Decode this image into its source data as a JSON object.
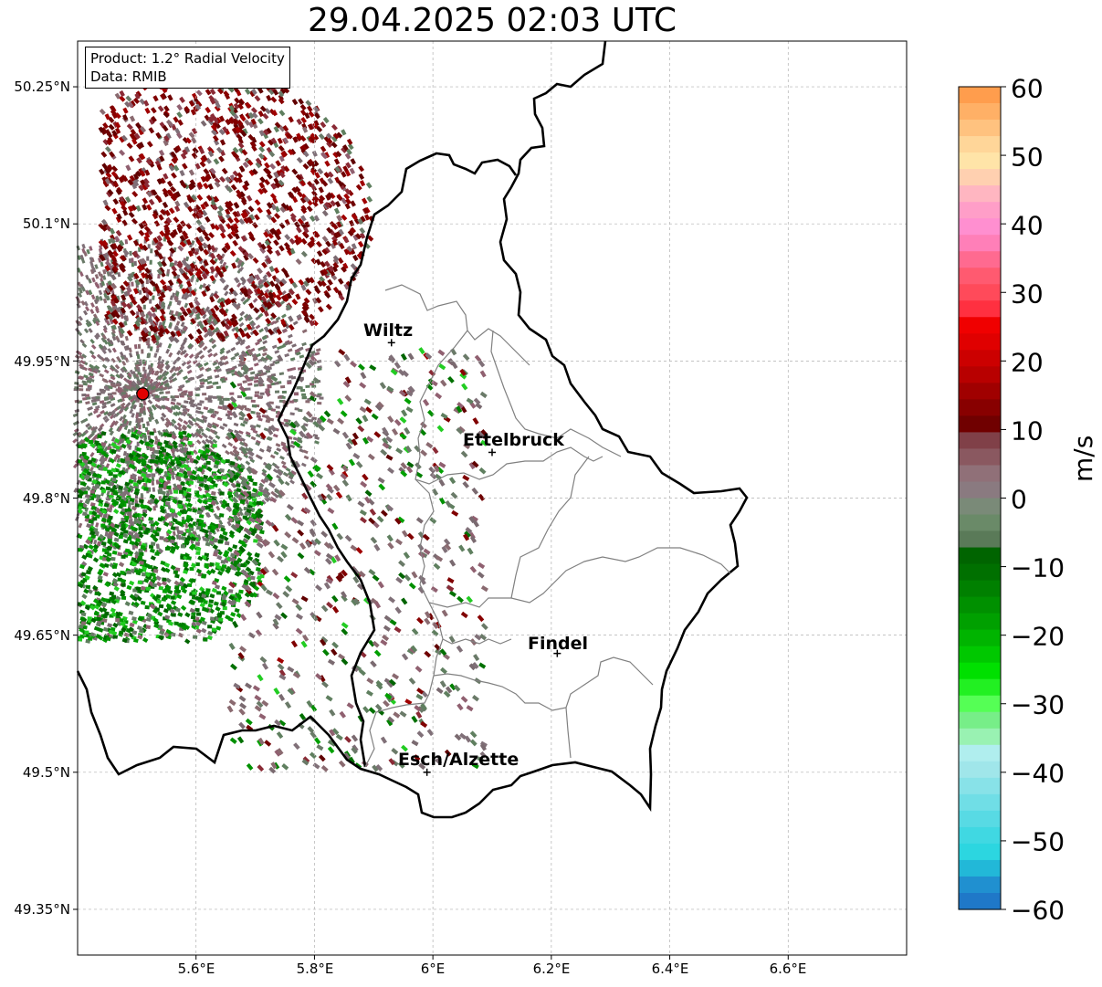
{
  "title": "29.04.2025 02:03 UTC",
  "info": {
    "product": "Product: 1.2° Radial Velocity",
    "data": "Data: RMIB"
  },
  "axes": {
    "lon_range": [
      5.4,
      6.8
    ],
    "lat_range": [
      49.3,
      50.3
    ],
    "x_ticks": [
      "5.6°E",
      "5.8°E",
      "6°E",
      "6.2°E",
      "6.4°E",
      "6.6°E"
    ],
    "y_ticks": [
      "50.25°N",
      "50.1°N",
      "49.95°N",
      "49.8°N",
      "49.65°N",
      "49.5°N",
      "49.35°N"
    ],
    "grid": true
  },
  "radar_site": {
    "lon": 5.51,
    "lat": 49.914,
    "color": "#e00000"
  },
  "cities": [
    {
      "name": "Wiltz",
      "lon": 5.93,
      "lat": 49.97
    },
    {
      "name": "Ettelbruck",
      "lon": 6.1,
      "lat": 49.85
    },
    {
      "name": "Findel",
      "lon": 6.21,
      "lat": 49.63
    },
    {
      "name": "Esch/Alzette",
      "lon": 5.99,
      "lat": 49.5
    }
  ],
  "colorbar": {
    "unit": "m/s",
    "min": -60,
    "max": 60,
    "ticks": [
      "60",
      "50",
      "40",
      "30",
      "20",
      "10",
      "0",
      "−10",
      "−20",
      "−30",
      "−40",
      "−50",
      "−60"
    ],
    "colors_top_to_bottom": [
      "#ff9d4d",
      "#ffb066",
      "#ffc27f",
      "#ffd699",
      "#ffe4a8",
      "#ffd0b0",
      "#ffb6c1",
      "#ff9ec8",
      "#ff8fd0",
      "#ff7fb8",
      "#ff6a90",
      "#ff5a70",
      "#ff4a5a",
      "#ff3040",
      "#f00000",
      "#e00000",
      "#cc0000",
      "#b80000",
      "#a00000",
      "#880000",
      "#700000",
      "#804048",
      "#8a5860",
      "#907078",
      "#8a7a80",
      "#7a8a78",
      "#6a8a68",
      "#5a7a58",
      "#006400",
      "#007000",
      "#008000",
      "#009000",
      "#00a000",
      "#00b400",
      "#00c800",
      "#00e000",
      "#22f022",
      "#55ff55",
      "#77ee88",
      "#99f2b2",
      "#b0eeee",
      "#a0e6ea",
      "#88e2e8",
      "#70dee6",
      "#58dae4",
      "#40d8e2",
      "#2cd6e0",
      "#22b8d8",
      "#2090d0",
      "#1f78c8"
    ]
  }
}
